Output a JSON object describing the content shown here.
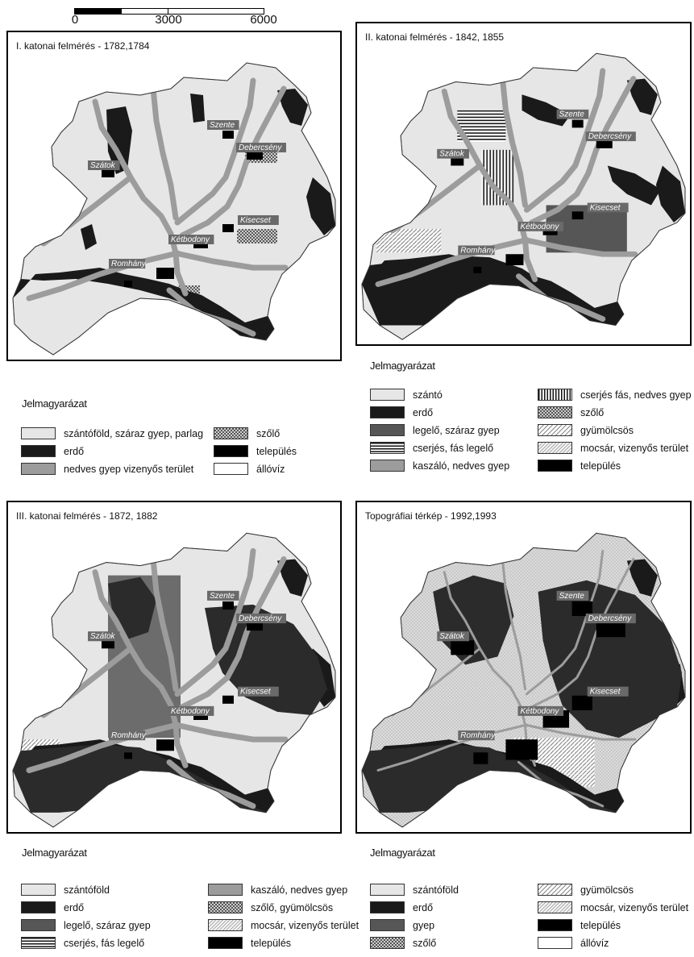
{
  "scale": {
    "labels": [
      "0",
      "3000",
      "6000"
    ]
  },
  "colors": {
    "light": "#e6e6e6",
    "forest": "#1a1a1a",
    "wet": "#9c9c9c",
    "pasture": "#565656",
    "settlement": "#000000",
    "water": "#ffffff"
  },
  "places": [
    "Szente",
    "Debercsény",
    "Szátok",
    "Kisecset",
    "Kétbodony",
    "Romhány"
  ],
  "maps": [
    {
      "title": "I. katonai felmérés - 1782,1784"
    },
    {
      "title": "II. katonai felmérés - 1842, 1855"
    },
    {
      "title": "III. katonai felmérés - 1872, 1882"
    },
    {
      "title": "Topográfiai térkép - 1992,1993"
    }
  ],
  "legends": [
    {
      "title": "Jelmagyarázat",
      "items": [
        {
          "label": "szántóföld, száraz gyep, parlag",
          "pattern": "light"
        },
        {
          "label": "erdő",
          "pattern": "forest"
        },
        {
          "label": "nedves gyep vizenyős terület",
          "pattern": "wet"
        },
        {
          "label": "szőlő",
          "pattern": "checker"
        },
        {
          "label": "település",
          "pattern": "settlement"
        },
        {
          "label": "állóvíz",
          "pattern": "water"
        }
      ]
    },
    {
      "title": "Jelmagyarázat",
      "items": [
        {
          "label": "szántó",
          "pattern": "light"
        },
        {
          "label": "erdő",
          "pattern": "forest"
        },
        {
          "label": "legelő, száraz gyep",
          "pattern": "pasture"
        },
        {
          "label": "cserjés, fás legelő",
          "pattern": "hstripes"
        },
        {
          "label": "kaszáló, nedves gyep",
          "pattern": "wet"
        },
        {
          "label": "cserjés fás, nedves gyep",
          "pattern": "vstripes"
        },
        {
          "label": "szőlő",
          "pattern": "checker"
        },
        {
          "label": "gyümölcsös",
          "pattern": "diag"
        },
        {
          "label": "mocsár, vizenyős terület",
          "pattern": "diag2"
        },
        {
          "label": "település",
          "pattern": "settlement"
        }
      ]
    },
    {
      "title": "Jelmagyarázat",
      "items": [
        {
          "label": "szántóföld",
          "pattern": "light"
        },
        {
          "label": "erdő",
          "pattern": "forest"
        },
        {
          "label": "legelő, száraz gyep",
          "pattern": "pasture"
        },
        {
          "label": "cserjés, fás legelő",
          "pattern": "hstripes"
        },
        {
          "label": "kaszáló, nedves gyep",
          "pattern": "wet"
        },
        {
          "label": "szőlő, gyümölcsös",
          "pattern": "checker"
        },
        {
          "label": "mocsár, vizenyős terület",
          "pattern": "diag2"
        },
        {
          "label": "település",
          "pattern": "settlement"
        }
      ]
    },
    {
      "title": "Jelmagyarázat",
      "items": [
        {
          "label": "szántóföld",
          "pattern": "light"
        },
        {
          "label": "erdő",
          "pattern": "forest"
        },
        {
          "label": "gyep",
          "pattern": "pasture"
        },
        {
          "label": "szőlő",
          "pattern": "checker"
        },
        {
          "label": "gyümölcsös",
          "pattern": "diag"
        },
        {
          "label": "mocsár, vizenyős terület",
          "pattern": "diag2"
        },
        {
          "label": "település",
          "pattern": "settlement"
        },
        {
          "label": "állóvíz",
          "pattern": "water"
        }
      ]
    }
  ]
}
